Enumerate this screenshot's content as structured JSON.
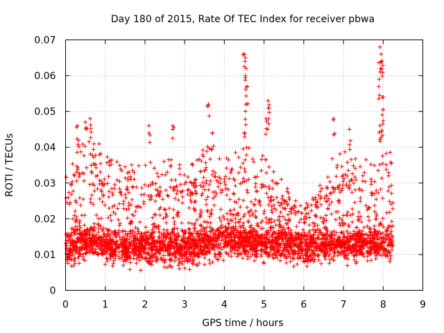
{
  "chart_data": {
    "type": "scatter",
    "title": "Day 180 of 2015, Rate Of TEC Index for receiver pbwa",
    "xlabel": "GPS time / hours",
    "ylabel": "ROTI / TECUs",
    "xlim": [
      0,
      9
    ],
    "ylim": [
      0,
      0.07
    ],
    "xticks": [
      "0",
      "1",
      "2",
      "3",
      "4",
      "5",
      "6",
      "7",
      "8",
      "9"
    ],
    "yticks": [
      "0",
      "0.01",
      "0.02",
      "0.03",
      "0.04",
      "0.05",
      "0.06",
      "0.07"
    ],
    "grid": true,
    "marker": "+",
    "color": "#ff0000",
    "x_range_of_data": [
      0,
      8.25
    ],
    "profile": {
      "hours": [
        0.0,
        0.25,
        0.5,
        0.75,
        1.0,
        1.5,
        2.0,
        2.5,
        3.0,
        3.5,
        4.0,
        4.5,
        5.0,
        5.5,
        6.0,
        6.5,
        7.0,
        7.5,
        7.75,
        8.0,
        8.25
      ],
      "baseline": [
        0.011,
        0.012,
        0.013,
        0.013,
        0.012,
        0.011,
        0.011,
        0.011,
        0.011,
        0.012,
        0.013,
        0.013,
        0.012,
        0.012,
        0.011,
        0.012,
        0.012,
        0.012,
        0.012,
        0.013,
        0.012
      ],
      "envelope": [
        0.031,
        0.042,
        0.046,
        0.046,
        0.038,
        0.035,
        0.036,
        0.037,
        0.036,
        0.041,
        0.038,
        0.042,
        0.038,
        0.03,
        0.026,
        0.035,
        0.04,
        0.038,
        0.035,
        0.048,
        0.035
      ]
    },
    "peaks": [
      {
        "x": 0.5,
        "y": 0.047
      },
      {
        "x": 0.3,
        "y": 0.046
      },
      {
        "x": 0.62,
        "y": 0.048
      },
      {
        "x": 2.1,
        "y": 0.046
      },
      {
        "x": 2.7,
        "y": 0.046
      },
      {
        "x": 3.6,
        "y": 0.052
      },
      {
        "x": 3.7,
        "y": 0.044
      },
      {
        "x": 4.5,
        "y": 0.066
      },
      {
        "x": 4.52,
        "y": 0.064
      },
      {
        "x": 4.55,
        "y": 0.062
      },
      {
        "x": 4.57,
        "y": 0.057
      },
      {
        "x": 4.55,
        "y": 0.052
      },
      {
        "x": 4.5,
        "y": 0.044
      },
      {
        "x": 5.1,
        "y": 0.053
      },
      {
        "x": 5.12,
        "y": 0.051
      },
      {
        "x": 5.05,
        "y": 0.048
      },
      {
        "x": 6.75,
        "y": 0.048
      },
      {
        "x": 7.15,
        "y": 0.045
      },
      {
        "x": 7.92,
        "y": 0.068
      },
      {
        "x": 7.95,
        "y": 0.066
      },
      {
        "x": 7.97,
        "y": 0.064
      },
      {
        "x": 7.9,
        "y": 0.059
      },
      {
        "x": 8.0,
        "y": 0.054
      },
      {
        "x": 7.98,
        "y": 0.049
      },
      {
        "x": 7.92,
        "y": 0.046
      }
    ]
  }
}
